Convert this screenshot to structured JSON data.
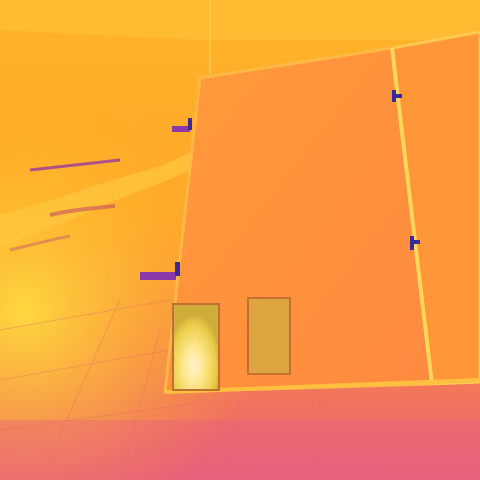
{
  "image": {
    "kind": "thermal-camera-photo",
    "palette": "iron",
    "subject": "solar-panels-on-rooftop",
    "colors": {
      "hot": "#fff7b0",
      "warm": "#ffb020",
      "mid": "#ff8a2a",
      "cool": "#e8607a",
      "cold": "#8a3aa8",
      "coldest": "#3a2a9a"
    }
  },
  "measurement_boxes": [
    {
      "id": "box-1",
      "state": "hotspot"
    },
    {
      "id": "box-2",
      "state": "reference"
    }
  ]
}
